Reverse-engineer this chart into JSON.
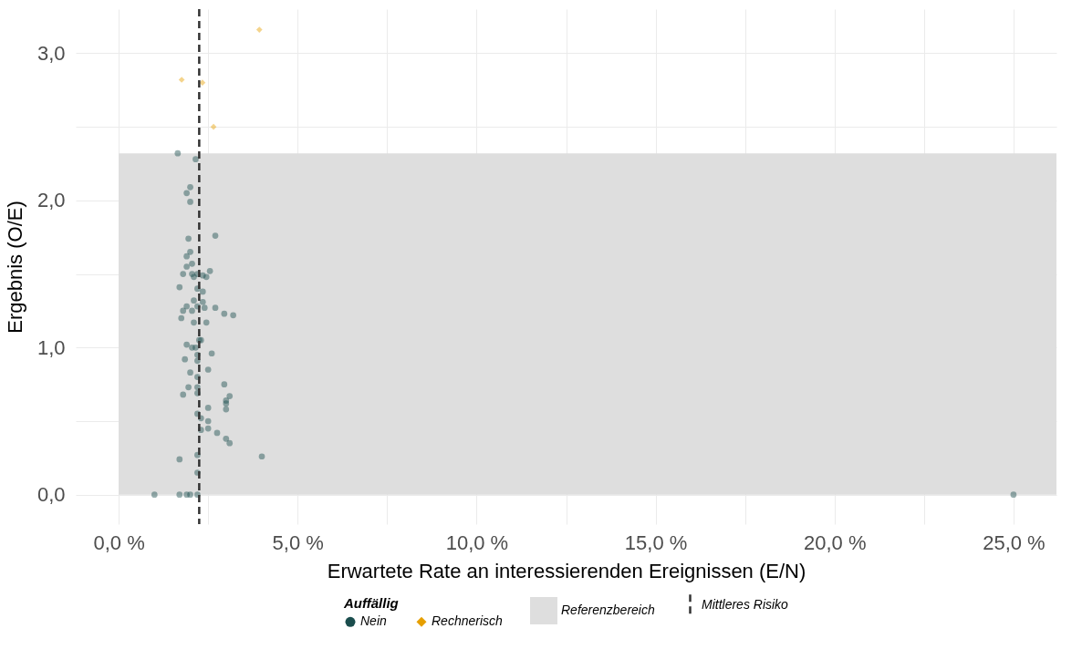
{
  "chart_data": {
    "type": "scatter",
    "xlabel": "Erwartete Rate an interessierenden Ereignissen (E/N)",
    "ylabel": "Ergebnis (O/E)",
    "legend_title": "Auffällig",
    "legend": "bottom",
    "grid": true,
    "xlim": [
      -1.2,
      26.2
    ],
    "ylim": [
      -0.2,
      3.3
    ],
    "xticks": [
      {
        "value": 0,
        "label": "0,0 %"
      },
      {
        "value": 2.5,
        "label": null
      },
      {
        "value": 5,
        "label": "5,0 %"
      },
      {
        "value": 7.5,
        "label": null
      },
      {
        "value": 10,
        "label": "10,0 %"
      },
      {
        "value": 12.5,
        "label": null
      },
      {
        "value": 15,
        "label": "15,0 %"
      },
      {
        "value": 17.5,
        "label": null
      },
      {
        "value": 20,
        "label": "20,0 %"
      },
      {
        "value": 22.5,
        "label": null
      },
      {
        "value": 25,
        "label": "25,0 %"
      }
    ],
    "yticks": [
      {
        "value": 0,
        "label": "0,0"
      },
      {
        "value": 0.5,
        "label": null
      },
      {
        "value": 1,
        "label": "1,0"
      },
      {
        "value": 1.5,
        "label": null
      },
      {
        "value": 2,
        "label": "2,0"
      },
      {
        "value": 2.5,
        "label": null
      },
      {
        "value": 3,
        "label": "3,0"
      }
    ],
    "series": [
      {
        "name": "Nein",
        "color": "#1a4d4d",
        "marker": "circle",
        "x": [
          1.0,
          1.7,
          1.9,
          2.0,
          2.2,
          25,
          1.7,
          2.2,
          2.2,
          4.0,
          3.1,
          3.0,
          2.75,
          2.5,
          2.3,
          2.5,
          2.3,
          2.5,
          3.0,
          2.2,
          3.1,
          3.0,
          3.0,
          2.95,
          1.8,
          2.2,
          1.95,
          2.2,
          2.5,
          2.0,
          2.2,
          1.85,
          2.2,
          2.2,
          2.6,
          1.9,
          2.05,
          2.15,
          2.25,
          2.3,
          1.75,
          2.1,
          2.45,
          2.95,
          3.2,
          1.8,
          1.9,
          2.05,
          2.2,
          2.4,
          2.7,
          2.1,
          2.35,
          2.2,
          2.35,
          1.7,
          1.8,
          2.1,
          2.05,
          2.2,
          2.35,
          2.45,
          2.55,
          1.9,
          2.05,
          2.0,
          1.9,
          2.7,
          1.95,
          2.0,
          1.9,
          2.0,
          2.15,
          1.65
        ],
        "values": [
          0,
          0,
          0,
          0,
          0,
          0,
          0.24,
          0.15,
          0.27,
          0.26,
          0.35,
          0.38,
          0.42,
          0.45,
          0.44,
          0.5,
          0.52,
          0.59,
          0.58,
          0.55,
          0.67,
          0.64,
          0.62,
          0.75,
          0.68,
          0.69,
          0.73,
          0.73,
          0.85,
          0.83,
          0.8,
          0.92,
          0.91,
          0.95,
          0.96,
          1.02,
          1.0,
          1.0,
          1.05,
          1.05,
          1.2,
          1.17,
          1.17,
          1.23,
          1.22,
          1.25,
          1.28,
          1.25,
          1.28,
          1.27,
          1.27,
          1.32,
          1.31,
          1.4,
          1.38,
          1.41,
          1.5,
          1.48,
          1.5,
          1.5,
          1.49,
          1.48,
          1.52,
          1.55,
          1.57,
          1.65,
          1.62,
          1.76,
          1.74,
          1.99,
          2.05,
          2.09,
          2.28,
          2.32
        ]
      },
      {
        "name": "Rechnerisch",
        "color": "#e69f00",
        "marker": "diamond",
        "x": [
          3.93,
          1.76,
          2.34,
          2.65
        ],
        "values": [
          3.16,
          2.82,
          2.8,
          2.5
        ]
      }
    ],
    "bands": [
      {
        "axis": "y",
        "from": 0,
        "to": 2.32,
        "label": "Referenzbereich",
        "color": "#dedede"
      }
    ],
    "ref_lines": [
      {
        "axis": "x",
        "value": 2.25,
        "label": "Mittleres Risiko",
        "color": "#333333",
        "line_style": "dashed"
      }
    ]
  }
}
